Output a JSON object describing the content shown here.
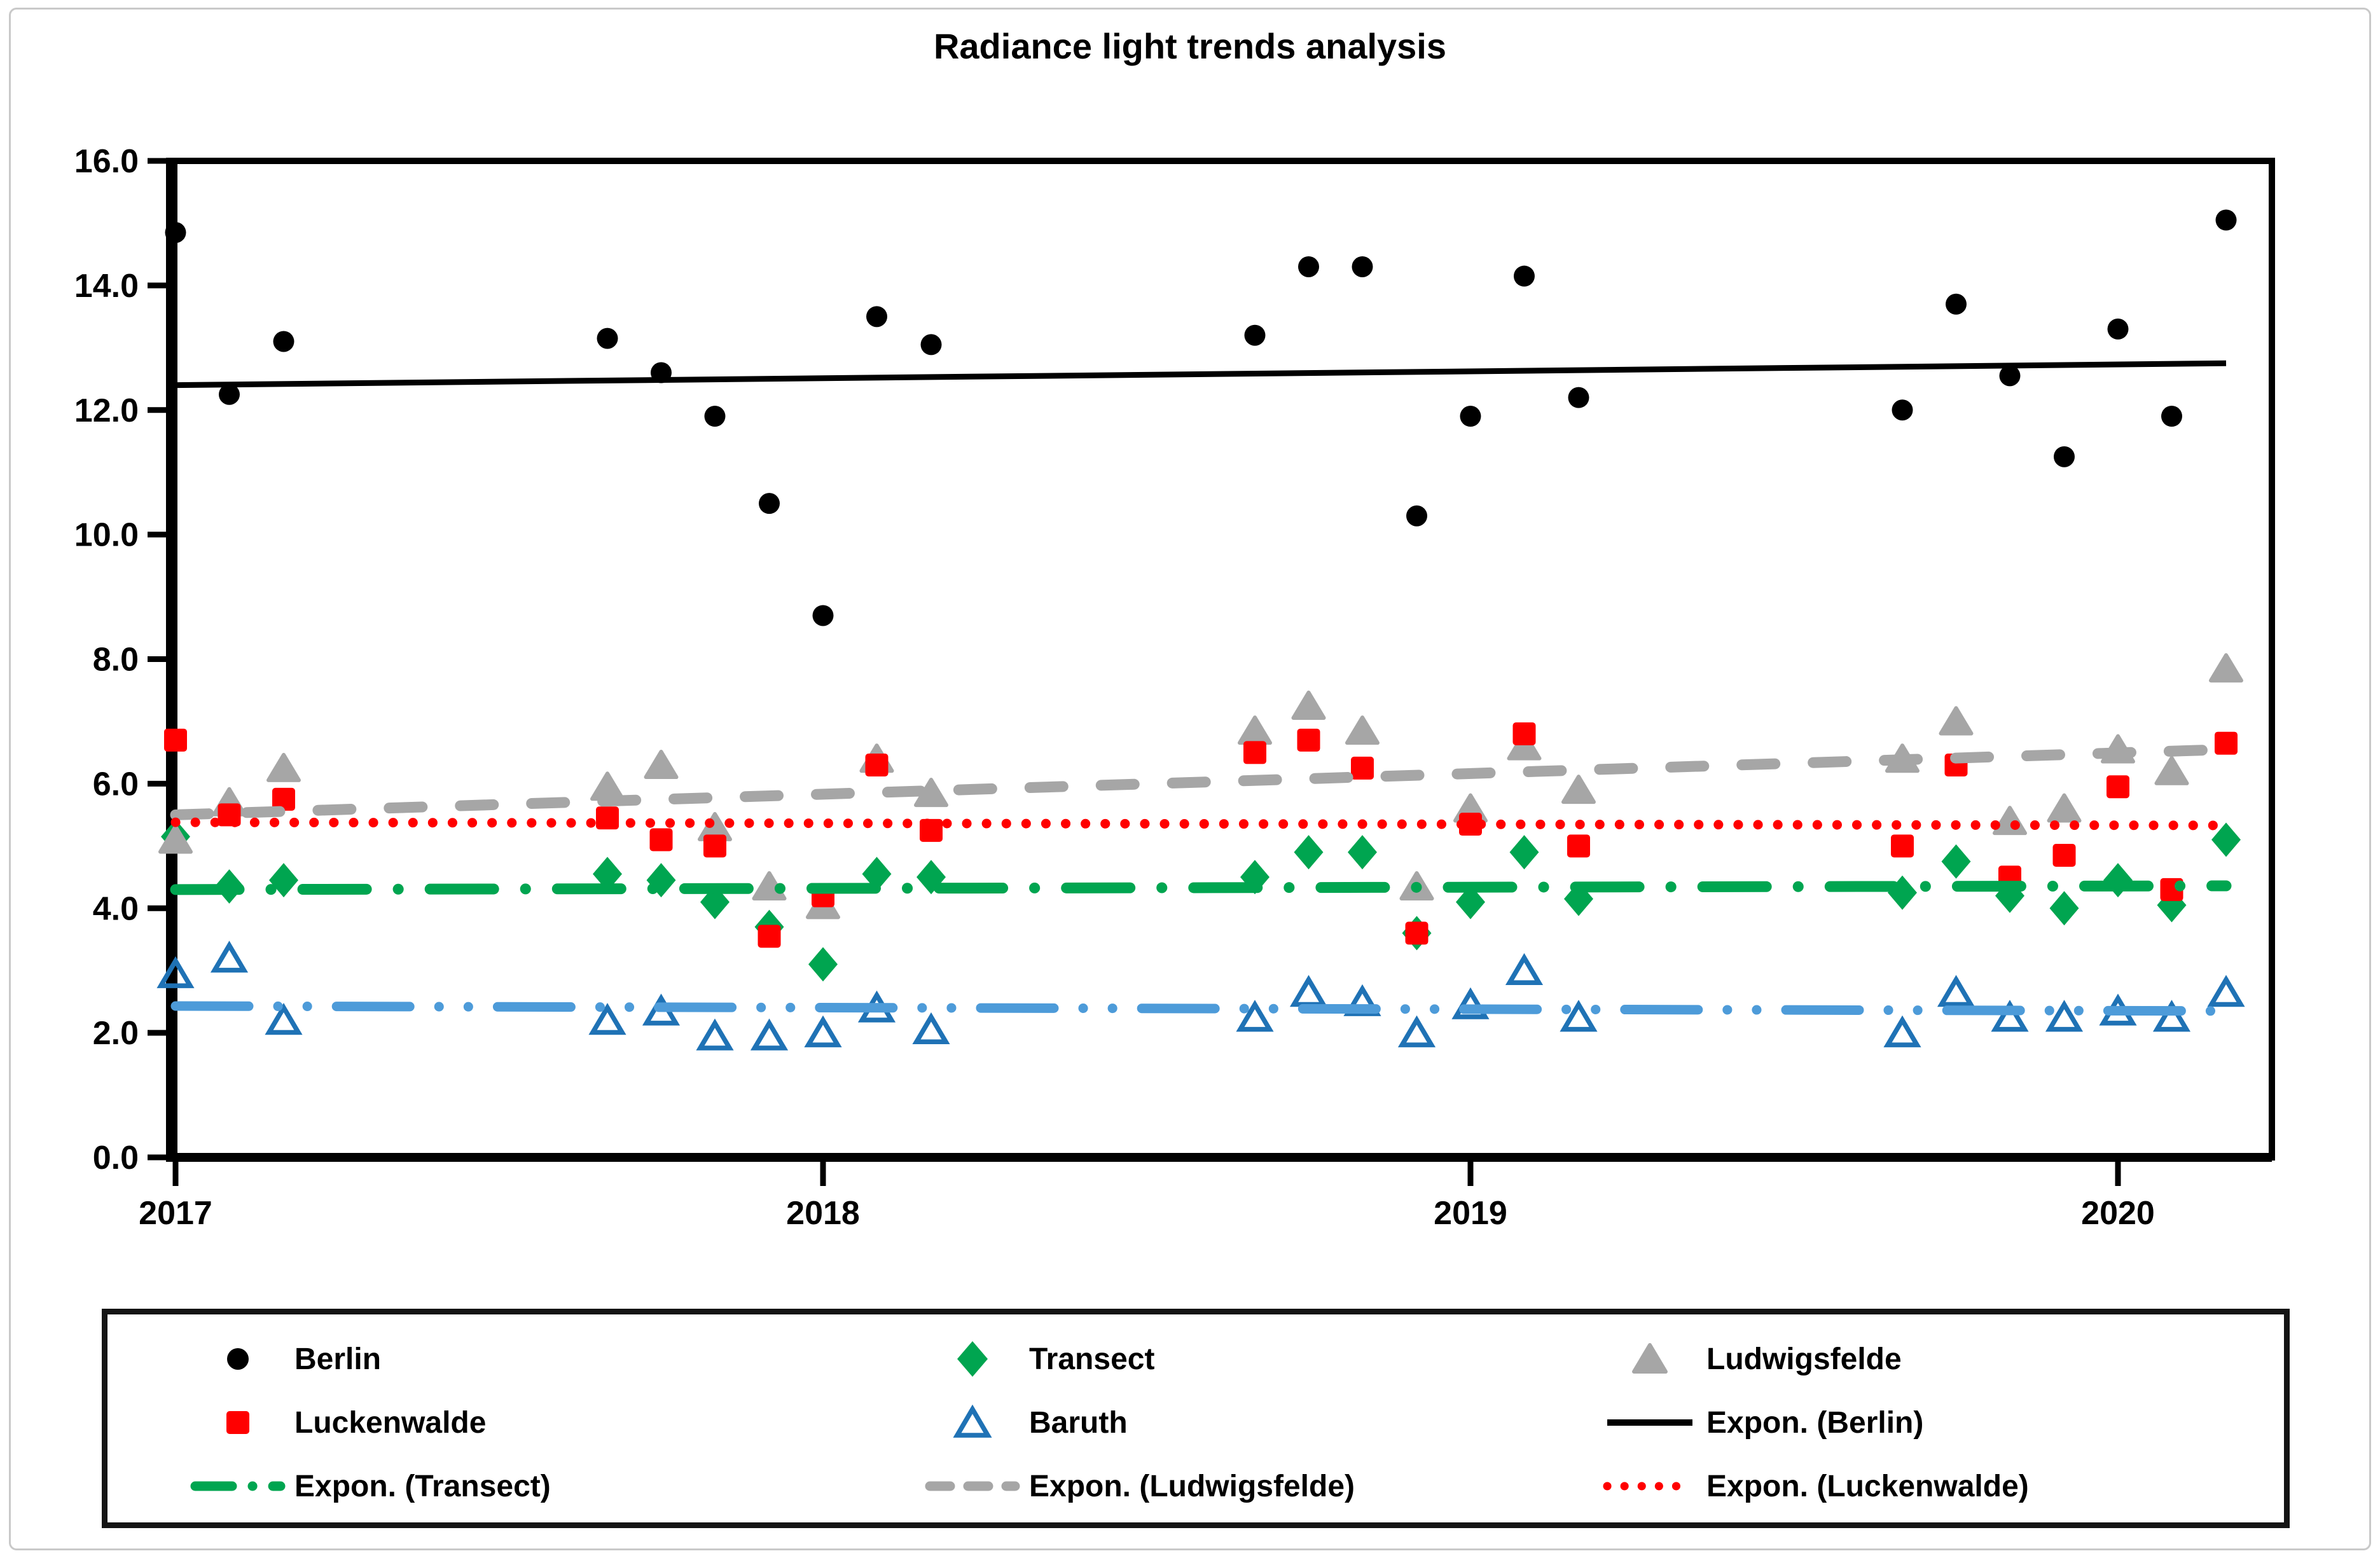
{
  "title": "Radiance light trends analysis",
  "colors": {
    "berlin": "#000000",
    "luckenwalde": "#FF0000",
    "ludwigsfelde": "#A6A6A6",
    "transect": "#00A550",
    "baruth": "#1F72B5",
    "baruth_trend": "#4D9BD9",
    "axis": "#000000"
  },
  "chart_data": {
    "type": "scatter",
    "title": "Radiance light trends analysis",
    "xlabel": "",
    "ylabel": "",
    "grid": "off",
    "legend_position": "bottom-box",
    "xlim": [
      2016.99,
      2020.29
    ],
    "ylim": [
      0,
      16
    ],
    "y_ticks": [
      0,
      2,
      4,
      6,
      8,
      10,
      12,
      14,
      16
    ],
    "y_tick_labels": [
      "0.0",
      "2.0",
      "4.0",
      "6.0",
      "8.0",
      "10.0",
      "12.0",
      "14.0",
      "16.0"
    ],
    "x_tick_positions": [
      2017,
      2018,
      2019,
      2020
    ],
    "x_tick_labels": [
      "2017",
      "2018",
      "2019",
      "2020"
    ],
    "x": [
      2017.0,
      2017.083,
      2017.167,
      2017.667,
      2017.75,
      2017.833,
      2017.917,
      2018.0,
      2018.083,
      2018.167,
      2018.667,
      2018.75,
      2018.833,
      2018.917,
      2019.0,
      2019.083,
      2019.167,
      2019.667,
      2019.75,
      2019.833,
      2019.917,
      2020.0,
      2020.083,
      2020.167
    ],
    "series": [
      {
        "id": "berlin",
        "name": "Berlin",
        "marker": "circle",
        "color": "#000000",
        "values": [
          14.85,
          12.25,
          13.1,
          13.15,
          12.6,
          11.9,
          10.5,
          8.7,
          13.5,
          13.05,
          13.2,
          14.3,
          14.3,
          10.3,
          11.9,
          14.15,
          12.2,
          12.0,
          13.7,
          12.55,
          11.25,
          13.3,
          11.9,
          15.05
        ]
      },
      {
        "id": "luckenwalde",
        "name": "Luckenwalde",
        "marker": "square",
        "color": "#FF0000",
        "values": [
          6.7,
          5.5,
          5.75,
          5.45,
          5.1,
          5.0,
          3.55,
          4.2,
          6.3,
          5.25,
          6.5,
          6.7,
          6.25,
          3.6,
          5.35,
          6.8,
          5.0,
          5.0,
          6.3,
          4.5,
          4.85,
          5.95,
          4.3,
          6.65
        ]
      },
      {
        "id": "ludwigsfelde",
        "name": "Ludwigsfelde",
        "marker": "triangle",
        "color": "#A6A6A6",
        "values": [
          5.1,
          5.7,
          6.25,
          5.95,
          6.3,
          5.3,
          4.35,
          4.05,
          6.4,
          5.85,
          6.85,
          7.25,
          6.85,
          4.35,
          5.6,
          6.6,
          5.9,
          6.4,
          7.0,
          5.4,
          5.6,
          6.55,
          6.2,
          7.85
        ]
      },
      {
        "id": "transect",
        "name": "Transect",
        "marker": "diamond",
        "color": "#00A550",
        "values": [
          5.15,
          4.35,
          4.45,
          4.55,
          4.45,
          4.1,
          3.7,
          3.1,
          4.55,
          4.5,
          4.5,
          4.9,
          4.9,
          3.6,
          4.1,
          4.9,
          4.15,
          4.25,
          4.75,
          4.2,
          4.0,
          4.45,
          4.05,
          5.1
        ]
      },
      {
        "id": "baruth",
        "name": "Baruth",
        "marker": "open-triangle",
        "color": "#1F72B5",
        "values": [
          2.95,
          3.2,
          2.2,
          2.2,
          2.35,
          1.95,
          1.95,
          2.0,
          2.4,
          2.05,
          2.25,
          2.65,
          2.5,
          2.0,
          2.45,
          3.0,
          2.25,
          2.0,
          2.65,
          2.25,
          2.25,
          2.35,
          2.25,
          2.65
        ]
      }
    ],
    "trendlines": [
      {
        "id": "ludwigsfelde",
        "label": "Expon. (Ludwigsfelde)",
        "style": "dashed",
        "color": "#A6A6A6",
        "x_start": 2017.0,
        "x_end": 2020.167,
        "y_start": 5.5,
        "y_end": 6.55
      },
      {
        "id": "luckenwalde",
        "label": "Expon. (Luckenwalde)",
        "style": "dotted",
        "color": "#FF0000",
        "x_start": 2017.0,
        "x_end": 2020.167,
        "y_start": 5.38,
        "y_end": 5.33
      },
      {
        "id": "transect",
        "label": "Expon. (Transect)",
        "style": "dashdot",
        "color": "#00A550",
        "x_start": 2017.0,
        "x_end": 2020.167,
        "y_start": 4.3,
        "y_end": 4.36
      },
      {
        "id": "baruth",
        "label": "",
        "style": "dashdotdot",
        "color": "#4D9BD9",
        "x_start": 2017.0,
        "x_end": 2020.167,
        "y_start": 2.43,
        "y_end": 2.35
      },
      {
        "id": "berlin",
        "label": "Expon. (Berlin)",
        "style": "solid",
        "color": "#000000",
        "x_start": 2017.0,
        "x_end": 2020.167,
        "y_start": 12.4,
        "y_end": 12.75
      }
    ],
    "legend": [
      {
        "id": "berlin",
        "label": "Berlin",
        "icon": "circle",
        "color": "#000000"
      },
      {
        "id": "transect",
        "label": "Transect",
        "icon": "diamond",
        "color": "#00A550"
      },
      {
        "id": "ludwigsfelde",
        "label": "Ludwigsfelde",
        "icon": "triangle",
        "color": "#A6A6A6"
      },
      {
        "id": "luckenwalde",
        "label": "Luckenwalde",
        "icon": "square",
        "color": "#FF0000"
      },
      {
        "id": "baruth",
        "label": "Baruth",
        "icon": "open-triangle",
        "color": "#1F72B5"
      },
      {
        "id": "expon-berlin",
        "label": "Expon. (Berlin)",
        "icon": "line-solid",
        "color": "#000000"
      },
      {
        "id": "expon-transect",
        "label": "Expon. (Transect)",
        "icon": "line-dashdot",
        "color": "#00A550"
      },
      {
        "id": "expon-ludwigsfelde",
        "label": "Expon. (Ludwigsfelde)",
        "icon": "line-dashed",
        "color": "#A6A6A6"
      },
      {
        "id": "expon-luckenwalde",
        "label": "Expon. (Luckenwalde)",
        "icon": "line-dotted",
        "color": "#FF0000"
      }
    ]
  }
}
